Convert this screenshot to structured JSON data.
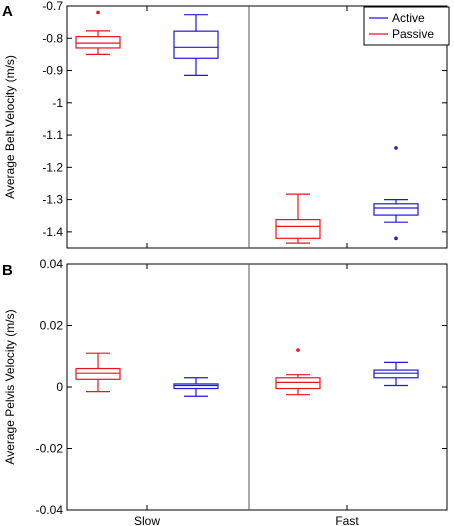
{
  "chart_data": [
    {
      "panel_label": "A",
      "type": "box",
      "ylabel": "Average Belt Velocity (m/s)",
      "ylim": [
        -1.45,
        -0.7
      ],
      "yticks": [
        -0.7,
        -0.8,
        -0.9,
        -1,
        -1.1,
        -1.2,
        -1.3,
        -1.4
      ],
      "ytick_labels": [
        "-0.7",
        "-0.8",
        "-0.9",
        "-1",
        "-1.1",
        "-1.2",
        "-1.3",
        "-1.4"
      ],
      "groups": [
        "Slow",
        "Fast"
      ],
      "legend": {
        "placement": "top-right",
        "entries": [
          "Active",
          "Passive"
        ]
      },
      "series": [
        {
          "name": "Passive",
          "color": "#e8161b",
          "boxes": [
            {
              "group": "Slow",
              "min": -0.85,
              "q1": -0.83,
              "median": -0.815,
              "q3": -0.795,
              "max": -0.777,
              "outliers": [
                -0.72
              ]
            },
            {
              "group": "Fast",
              "min": -1.435,
              "q1": -1.42,
              "median": -1.383,
              "q3": -1.362,
              "max": -1.283,
              "outliers": []
            }
          ]
        },
        {
          "name": "Active",
          "color": "#1d1ad6",
          "boxes": [
            {
              "group": "Slow",
              "min": -0.915,
              "q1": -0.862,
              "median": -0.828,
              "q3": -0.778,
              "max": -0.727,
              "outliers": []
            },
            {
              "group": "Fast",
              "min": -1.37,
              "q1": -1.348,
              "median": -1.326,
              "q3": -1.313,
              "max": -1.3,
              "outliers": [
                -1.14,
                -1.42
              ]
            }
          ]
        }
      ]
    },
    {
      "panel_label": "B",
      "type": "box",
      "ylabel": "Average Pelvis Velocity (m/s)",
      "ylim": [
        -0.04,
        0.04
      ],
      "yticks": [
        0.04,
        0.02,
        0,
        -0.02,
        -0.04
      ],
      "ytick_labels": [
        "0.04",
        "0.02",
        "0",
        "-0.02",
        "-0.04"
      ],
      "xlabel_ticks": [
        "Slow",
        "Fast"
      ],
      "groups": [
        "Slow",
        "Fast"
      ],
      "series": [
        {
          "name": "Passive",
          "color": "#e8161b",
          "boxes": [
            {
              "group": "Slow",
              "min": -0.0015,
              "q1": 0.0025,
              "median": 0.0045,
              "q3": 0.006,
              "max": 0.011,
              "outliers": []
            },
            {
              "group": "Fast",
              "min": -0.0025,
              "q1": -0.0005,
              "median": 0.0015,
              "q3": 0.003,
              "max": 0.004,
              "outliers": [
                0.012
              ]
            }
          ]
        },
        {
          "name": "Active",
          "color": "#1d1ad6",
          "boxes": [
            {
              "group": "Slow",
              "min": -0.003,
              "q1": -0.0005,
              "median": 0.0005,
              "q3": 0.001,
              "max": 0.003,
              "outliers": []
            },
            {
              "group": "Fast",
              "min": 0.0005,
              "q1": 0.003,
              "median": 0.0045,
              "q3": 0.0055,
              "max": 0.008,
              "outliers": []
            }
          ]
        }
      ]
    }
  ]
}
